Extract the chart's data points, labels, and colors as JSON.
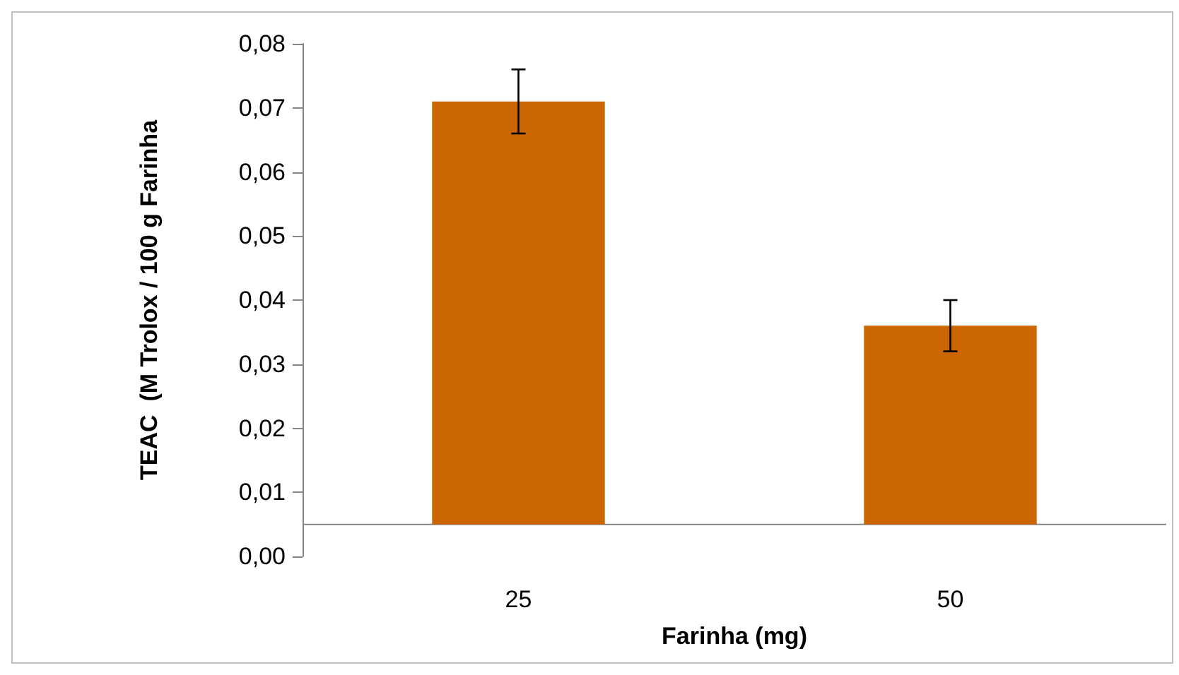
{
  "chart_data": {
    "type": "bar",
    "xlabel": "Farinha (mg)",
    "ylabel": "TEAC  (M Trolox / 100 g Farinha",
    "categories": [
      "25",
      "50"
    ],
    "base": [
      0.005,
      0.005
    ],
    "values": [
      0.066,
      0.031
    ],
    "errors": [
      0.005,
      0.004
    ],
    "color": "#cc6600",
    "ylim": [
      0,
      0.08
    ],
    "yticks": [
      {
        "value": 0,
        "label": "0,00"
      },
      {
        "value": 0.01,
        "label": "0,01"
      },
      {
        "value": 0.02,
        "label": "0,02"
      },
      {
        "value": 0.03,
        "label": "0,03"
      },
      {
        "value": 0.04,
        "label": "0,04"
      },
      {
        "value": 0.05,
        "label": "0,05"
      },
      {
        "value": 0.06,
        "label": "0,06"
      },
      {
        "value": 0.07,
        "label": "0,07"
      },
      {
        "value": 0.08,
        "label": "0,08"
      }
    ],
    "grid": false,
    "legend": false
  }
}
